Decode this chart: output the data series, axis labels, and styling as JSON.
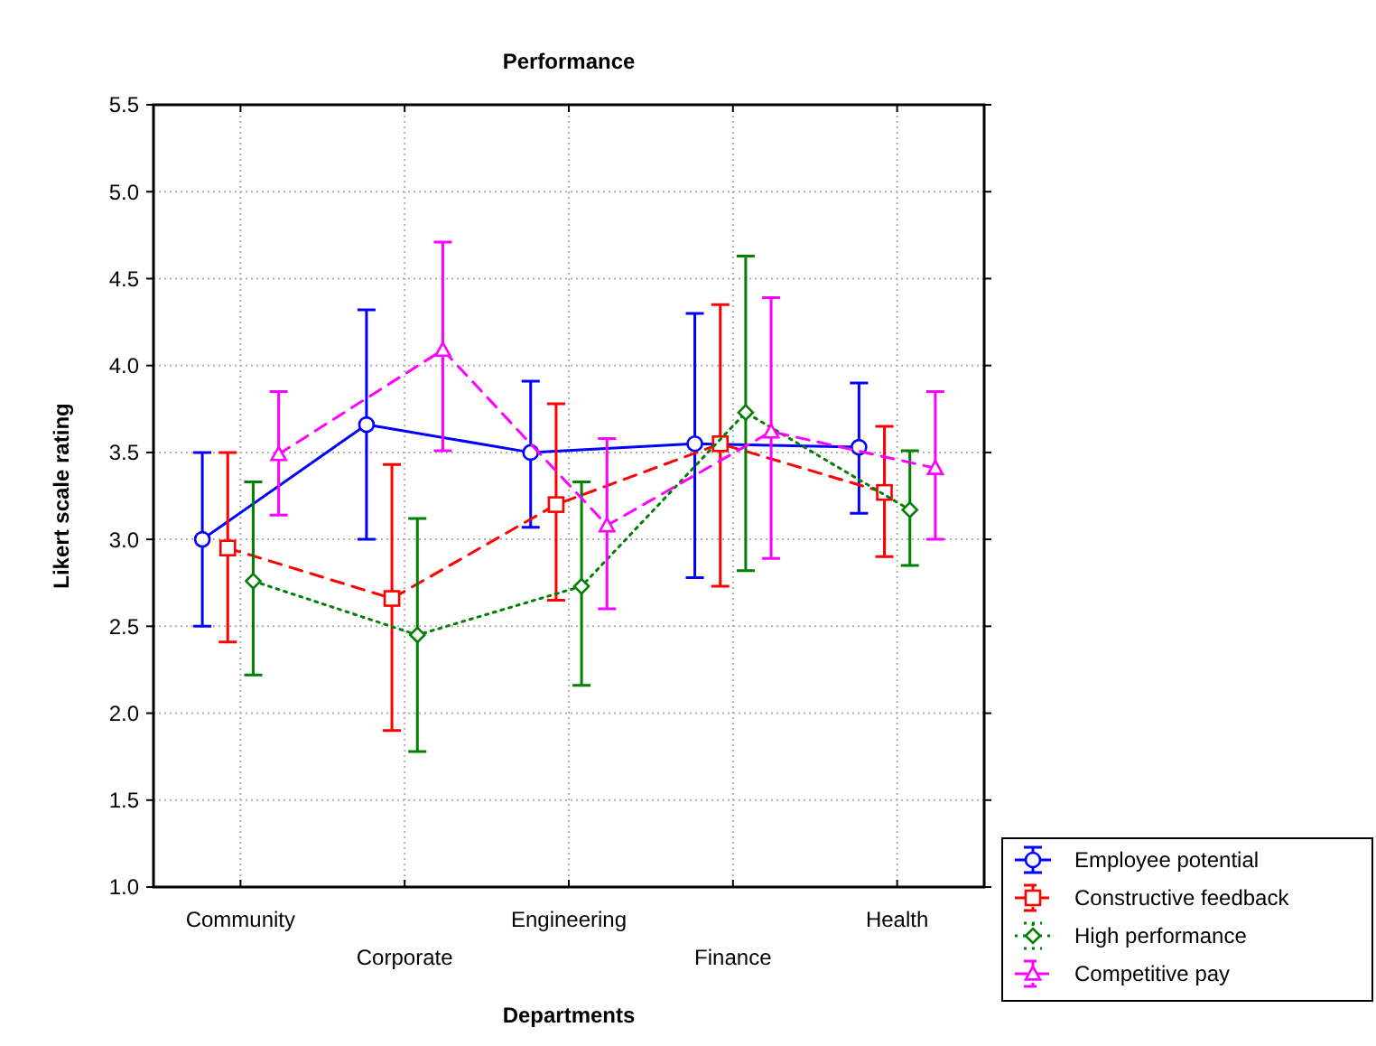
{
  "chart_data": {
    "type": "line",
    "title": "Performance",
    "xlabel": "Departments",
    "ylabel": "Likert scale rating",
    "categories": [
      "Community",
      "Corporate",
      "Engineering",
      "Finance",
      "Health"
    ],
    "ylim": [
      1.0,
      5.5
    ],
    "yticks": [
      {
        "value": 1.0,
        "label": "1.0"
      },
      {
        "value": 1.5,
        "label": "1.5"
      },
      {
        "value": 2.0,
        "label": "2.0"
      },
      {
        "value": 2.5,
        "label": "2.5"
      },
      {
        "value": 3.0,
        "label": "3.0"
      },
      {
        "value": 3.5,
        "label": "3.5"
      },
      {
        "value": 4.0,
        "label": "4.0"
      },
      {
        "value": 4.5,
        "label": "4.5"
      },
      {
        "value": 5.0,
        "label": "5.0"
      },
      {
        "value": 5.5,
        "label": "5.5"
      }
    ],
    "grid": true,
    "legend": "bottom right",
    "series": [
      {
        "name": "Employee potential",
        "color": "#0000ff",
        "marker": "circle",
        "line_style": "solid",
        "values": [
          3.0,
          3.66,
          3.5,
          3.55,
          3.53
        ],
        "errors": [
          [
            2.5,
            3.5
          ],
          [
            3.0,
            4.32
          ],
          [
            3.07,
            3.91
          ],
          [
            2.78,
            4.3
          ],
          [
            3.15,
            3.9
          ]
        ]
      },
      {
        "name": "Constructive feedback",
        "color": "#ff0000",
        "marker": "square",
        "line_style": "dashed",
        "values": [
          2.95,
          2.66,
          3.2,
          3.55,
          3.27
        ],
        "errors": [
          [
            2.41,
            3.5
          ],
          [
            1.9,
            3.43
          ],
          [
            2.65,
            3.78
          ],
          [
            2.73,
            4.35
          ],
          [
            2.9,
            3.65
          ]
        ]
      },
      {
        "name": "High performance",
        "color": "#008000",
        "marker": "diamond",
        "line_style": "dotted",
        "values": [
          2.76,
          2.45,
          2.73,
          3.73,
          3.17
        ],
        "errors": [
          [
            2.22,
            3.33
          ],
          [
            1.78,
            3.12
          ],
          [
            2.16,
            3.33
          ],
          [
            2.82,
            4.63
          ],
          [
            2.85,
            3.51
          ]
        ]
      },
      {
        "name": "Competitive pay",
        "color": "#ff00ff",
        "marker": "triangle",
        "line_style": "dashed",
        "values": [
          3.49,
          4.09,
          3.08,
          3.62,
          3.41
        ],
        "errors": [
          [
            3.14,
            3.85
          ],
          [
            3.51,
            4.71
          ],
          [
            2.6,
            3.58
          ],
          [
            2.89,
            4.39
          ],
          [
            3.0,
            3.85
          ]
        ]
      }
    ]
  }
}
